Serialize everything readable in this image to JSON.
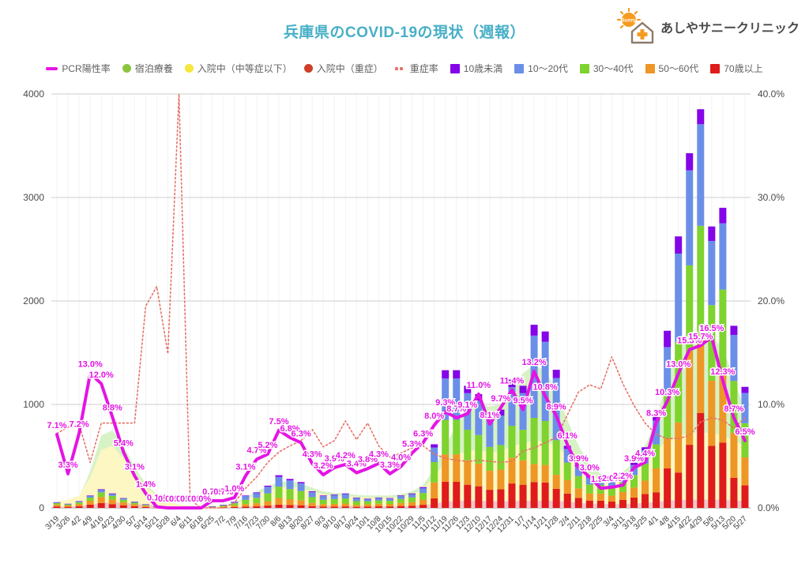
{
  "header": {
    "title": "兵庫県のCOVID-19の現状（週報）",
    "clinic_name": "あしやサニークリニック",
    "logo_sun_text": "Sunny",
    "accent_color": "#47afc7",
    "logo_color": "#f59b20"
  },
  "legend": {
    "items": [
      {
        "label": "PCR陽性率",
        "color": "#e414e4",
        "shape": "line"
      },
      {
        "label": "宿泊療養",
        "color": "#8bc53f",
        "shape": "dot"
      },
      {
        "label": "入院中（中等症以下）",
        "color": "#f6e73c",
        "shape": "dot"
      },
      {
        "label": "入院中（重症）",
        "color": "#cf3f28",
        "shape": "dot"
      },
      {
        "label": "重症率",
        "color": "#e57368",
        "shape": "dots"
      },
      {
        "label": "10歳未満",
        "color": "#8405e8",
        "shape": "square"
      },
      {
        "label": "10〜20代",
        "color": "#6b8fe8",
        "shape": "square"
      },
      {
        "label": "30〜40代",
        "color": "#7ed32f",
        "shape": "square"
      },
      {
        "label": "50〜60代",
        "color": "#ee9626",
        "shape": "square"
      },
      {
        "label": "70歳以上",
        "color": "#df1b1b",
        "shape": "square"
      }
    ]
  },
  "chart_data": {
    "type": "bar",
    "subtype": "combo-stacked-bar-area-line",
    "grid": true,
    "legend_position": "top",
    "categories": [
      "3/19",
      "3/26",
      "4/2",
      "4/9",
      "4/16",
      "4/23",
      "4/30",
      "5/7",
      "5/14",
      "5/21",
      "5/28",
      "6/4",
      "6/11",
      "6/18",
      "6/25",
      "7/2",
      "7/9",
      "7/16",
      "7/23",
      "7/30",
      "8/6",
      "8/13",
      "8/20",
      "8/27",
      "9/3",
      "9/10",
      "9/17",
      "9/24",
      "10/1",
      "10/8",
      "10/15",
      "10/22",
      "10/29",
      "11/5",
      "11/12",
      "11/19",
      "11/26",
      "12/3",
      "12/10",
      "12/17",
      "12/24",
      "12/31",
      "1/7",
      "1/14",
      "1/21",
      "1/28",
      "2/4",
      "2/11",
      "2/18",
      "2/25",
      "3/4",
      "3/11",
      "3/18",
      "3/25",
      "4/1",
      "4/8",
      "4/15",
      "4/22",
      "4/29",
      "5/6",
      "5/13",
      "5/20",
      "5/27"
    ],
    "left_axis": {
      "label": "",
      "min": 0,
      "max": 4000,
      "ticks": [
        0,
        1000,
        2000,
        3000,
        4000
      ]
    },
    "right_axis": {
      "label": "",
      "min": 0,
      "max": 40,
      "ticks": [
        "0.0%",
        "10.0%",
        "20.0%",
        "30.0%",
        "40.0%"
      ]
    },
    "area_series": [
      {
        "name": "宿泊療養",
        "color": "#d7f2c5",
        "axis": "left",
        "values": [
          30,
          60,
          110,
          350,
          700,
          750,
          600,
          400,
          230,
          130,
          65,
          32,
          22,
          17,
          17,
          25,
          50,
          100,
          160,
          210,
          250,
          260,
          235,
          195,
          160,
          145,
          140,
          125,
          120,
          120,
          120,
          135,
          160,
          220,
          380,
          600,
          800,
          950,
          1000,
          980,
          1000,
          1150,
          1300,
          1385,
          1320,
          1150,
          850,
          600,
          420,
          330,
          305,
          350,
          440,
          600,
          850,
          1250,
          1550,
          1680,
          1700,
          1650,
          1550,
          1250,
          950
        ]
      },
      {
        "name": "入院中（中等症以下）",
        "color": "#fcf7c3",
        "axis": "left",
        "values": [
          60,
          80,
          120,
          300,
          560,
          600,
          480,
          330,
          200,
          120,
          60,
          30,
          20,
          15,
          15,
          20,
          40,
          80,
          130,
          170,
          200,
          210,
          190,
          160,
          130,
          120,
          115,
          105,
          100,
          100,
          100,
          110,
          130,
          180,
          300,
          450,
          520,
          550,
          560,
          540,
          550,
          600,
          620,
          650,
          640,
          600,
          500,
          400,
          330,
          300,
          290,
          310,
          350,
          420,
          550,
          650,
          700,
          720,
          730,
          720,
          700,
          650,
          600
        ]
      },
      {
        "name": "入院中（重症）",
        "color": "#f2c6ce",
        "axis": "left",
        "values": [
          10,
          12,
          18,
          30,
          45,
          55,
          50,
          40,
          30,
          20,
          12,
          8,
          6,
          5,
          5,
          5,
          8,
          12,
          18,
          25,
          30,
          32,
          30,
          26,
          22,
          20,
          20,
          18,
          16,
          16,
          16,
          18,
          20,
          26,
          40,
          60,
          70,
          72,
          70,
          66,
          64,
          66,
          68,
          70,
          72,
          70,
          60,
          50,
          42,
          38,
          36,
          38,
          42,
          50,
          60,
          70,
          75,
          78,
          80,
          80,
          78,
          72,
          65
        ]
      }
    ],
    "bar_series": [
      {
        "name": "70歳以上",
        "color": "#df1b1b",
        "axis": "left",
        "values": [
          14,
          10,
          17,
          31,
          47,
          36,
          25,
          16,
          9,
          2,
          1,
          1,
          1,
          2,
          2,
          4,
          9,
          12,
          15,
          22,
          32,
          28,
          25,
          16,
          12,
          13,
          14,
          10,
          13,
          15,
          14,
          18,
          21,
          30,
          92,
          252,
          252,
          224,
          209,
          175,
          180,
          236,
          224,
          250,
          245,
          185,
          138,
          97,
          71,
          70,
          61,
          78,
          100,
          135,
          151,
          383,
          342,
          610,
          918,
          600,
          630,
          292,
          218
        ]
      },
      {
        "name": "50〜60代",
        "color": "#ee9626",
        "axis": "left",
        "values": [
          18,
          13,
          21,
          38,
          58,
          45,
          30,
          19,
          11,
          4,
          2,
          1,
          3,
          3,
          4,
          8,
          15,
          24,
          30,
          43,
          63,
          56,
          50,
          32,
          24,
          26,
          28,
          20,
          22,
          25,
          24,
          30,
          35,
          50,
          154,
          266,
          266,
          236,
          220,
          184,
          190,
          248,
          236,
          175,
          170,
          135,
          132,
          92,
          68,
          67,
          58,
          75,
          96,
          129,
          231,
          292,
          484,
          905,
          750,
          630,
          700,
          435,
          270
        ]
      },
      {
        "name": "30〜40代",
        "color": "#7ed32f",
        "axis": "left",
        "values": [
          14,
          10,
          16,
          30,
          45,
          35,
          24,
          15,
          9,
          5,
          3,
          2,
          3,
          4,
          5,
          10,
          21,
          42,
          52,
          75,
          110,
          98,
          88,
          56,
          42,
          46,
          49,
          35,
          29,
          32,
          30,
          38,
          45,
          64,
          197,
          333,
          333,
          295,
          275,
          230,
          238,
          310,
          295,
          445,
          425,
          335,
          168,
          118,
          87,
          85,
          74,
          95,
          122,
          164,
          231,
          434,
          778,
          829,
          1058,
          730,
          780,
          500,
          330
        ]
      },
      {
        "name": "10〜20代",
        "color": "#6b8fe8",
        "axis": "left",
        "values": [
          7,
          5,
          8,
          16,
          23,
          18,
          12,
          8,
          5,
          3,
          2,
          1,
          2,
          2,
          3,
          6,
          12,
          36,
          45,
          64,
          95,
          84,
          75,
          48,
          36,
          39,
          42,
          30,
          21,
          23,
          22,
          28,
          32,
          46,
          141,
          400,
          400,
          354,
          330,
          276,
          285,
          372,
          354,
          795,
          765,
          600,
          132,
          92,
          68,
          67,
          58,
          75,
          96,
          129,
          231,
          445,
          854,
          918,
          982,
          620,
          640,
          445,
          293
        ]
      },
      {
        "name": "10歳未満",
        "color": "#8405e8",
        "axis": "left",
        "values": [
          2,
          2,
          3,
          5,
          7,
          6,
          4,
          2,
          1,
          1,
          0,
          0,
          1,
          1,
          1,
          2,
          3,
          6,
          8,
          11,
          16,
          14,
          12,
          8,
          6,
          6,
          7,
          5,
          5,
          5,
          5,
          6,
          7,
          10,
          31,
          80,
          80,
          71,
          66,
          55,
          57,
          74,
          71,
          105,
          100,
          80,
          30,
          21,
          16,
          15,
          13,
          17,
          22,
          29,
          45,
          158,
          166,
          166,
          145,
          140,
          150,
          88,
          59
        ]
      }
    ],
    "line_series": [
      {
        "name": "重症率",
        "color": "#e57368",
        "style": "dotted",
        "axis": "right",
        "show_labels": false,
        "values": [
          7.2,
          7.8,
          8.1,
          4.4,
          8.2,
          8.2,
          8.2,
          8.2,
          19.5,
          21.4,
          14.9,
          40.0,
          0.8,
          0.0,
          0.0,
          0.0,
          0.5,
          1.9,
          3.0,
          4.4,
          5.4,
          6.0,
          6.5,
          7.6,
          5.9,
          6.5,
          8.4,
          6.6,
          8.2,
          6.0,
          4.9,
          5.3,
          5.8,
          6.0,
          5.2,
          4.8,
          4.6,
          4.5,
          4.6,
          4.5,
          4.4,
          4.5,
          5.5,
          5.8,
          6.3,
          6.8,
          9.0,
          11.2,
          11.9,
          11.5,
          14.6,
          12.0,
          9.9,
          8.2,
          7.1,
          6.7,
          6.7,
          7.0,
          8.3,
          8.7,
          8.5,
          7.7,
          8.7
        ]
      },
      {
        "name": "PCR陽性率",
        "color": "#e414e4",
        "style": "solid",
        "axis": "right",
        "show_labels": true,
        "values": [
          7.1,
          3.3,
          7.2,
          13.0,
          12.0,
          8.8,
          5.4,
          3.1,
          1.4,
          0.1,
          0.0,
          0.0,
          0.0,
          0.0,
          0.7,
          0.7,
          1.0,
          3.1,
          4.7,
          5.2,
          7.5,
          6.8,
          6.3,
          4.3,
          3.2,
          3.9,
          4.2,
          3.4,
          3.8,
          4.3,
          3.3,
          4.0,
          5.3,
          6.3,
          8.0,
          9.3,
          8.7,
          9.1,
          11.0,
          8.1,
          9.7,
          11.4,
          9.5,
          13.2,
          10.8,
          8.9,
          6.1,
          3.9,
          3.0,
          1.9,
          2.0,
          2.2,
          3.9,
          4.4,
          8.3,
          10.3,
          13.0,
          15.3,
          15.7,
          16.5,
          12.3,
          8.7,
          6.5
        ]
      }
    ]
  }
}
